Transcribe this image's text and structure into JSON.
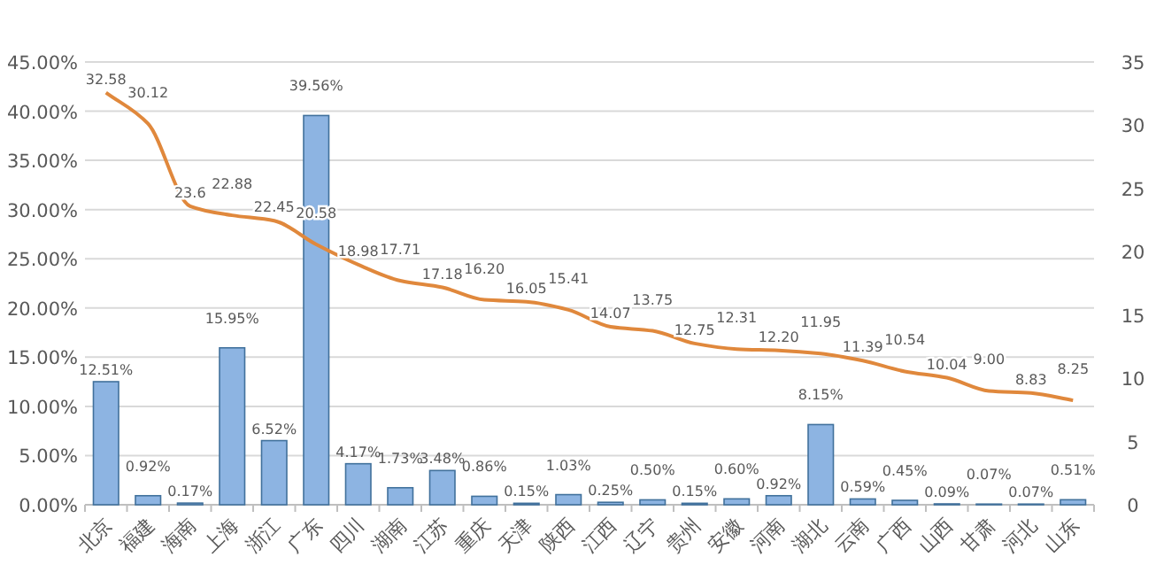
{
  "chart_data": {
    "type": "bar",
    "categories": [
      "北京",
      "福建",
      "海南",
      "上海",
      "浙江",
      "广东",
      "四川",
      "湖南",
      "江苏",
      "重庆",
      "天津",
      "陕西",
      "江西",
      "辽宁",
      "贵州",
      "安徽",
      "河南",
      "湖北",
      "云南",
      "广西",
      "山西",
      "甘肃",
      "河北",
      "山东"
    ],
    "series": [
      {
        "color": "#8db4e2",
        "values": [
          12.51,
          0.92,
          0.17,
          15.95,
          6.52,
          39.56,
          4.17,
          1.73,
          3.48,
          0.86,
          0.15,
          1.03,
          0.25,
          0.5,
          0.15,
          0.6,
          0.92,
          8.15,
          0.59,
          0.45,
          0.09,
          0.07,
          0.07,
          0.51
        ],
        "value_labels": [
          "12.51%",
          "0.92%",
          "0.17%",
          "15.95%",
          "6.52%",
          "39.56%",
          "4.17%",
          "1.73%",
          "3.48%",
          "0.86%",
          "0.15%",
          "1.03%",
          "0.25%",
          "0.50%",
          "0.15%",
          "0.60%",
          "0.92%",
          "8.15%",
          "0.59%",
          "0.45%",
          "0.09%",
          "0.07%",
          "0.07%",
          "0.51%"
        ]
      },
      {
        "type": "line",
        "axis": "y2",
        "color": "#e0883c",
        "values": [
          32.58,
          30.12,
          23.6,
          22.88,
          22.45,
          20.58,
          18.98,
          17.71,
          17.18,
          16.2,
          16.05,
          15.41,
          14.07,
          13.75,
          12.75,
          12.31,
          12.2,
          11.95,
          11.39,
          10.54,
          10.04,
          9.0,
          8.83,
          8.25
        ],
        "value_labels": [
          "32.58",
          "30.12",
          "23.6",
          "22.88",
          "22.45",
          "20.58",
          "18.98",
          "17.71",
          "17.18",
          "16.20",
          "16.05",
          "15.41",
          "14.07",
          "13.75",
          "12.75",
          "12.31",
          "12.20",
          "11.95",
          "11.39",
          "10.54",
          "10.04",
          "9.00",
          "8.83",
          "8.25"
        ]
      }
    ],
    "ylim": [
      0,
      45
    ],
    "yticks": [
      {
        "value": 0,
        "label": "0.00%"
      },
      {
        "value": 5,
        "label": "5.00%"
      },
      {
        "value": 10,
        "label": "10.00%"
      },
      {
        "value": 15,
        "label": "15.00%"
      },
      {
        "value": 20,
        "label": "20.00%"
      },
      {
        "value": 25,
        "label": "25.00%"
      },
      {
        "value": 30,
        "label": "30.00%"
      },
      {
        "value": 35,
        "label": "35.00%"
      },
      {
        "value": 40,
        "label": "40.00%"
      },
      {
        "value": 45,
        "label": "45.00%"
      }
    ],
    "y2lim": [
      0,
      35
    ],
    "y2ticks": [
      0,
      5,
      10,
      15,
      20,
      25,
      30,
      35
    ],
    "grid": "y"
  }
}
